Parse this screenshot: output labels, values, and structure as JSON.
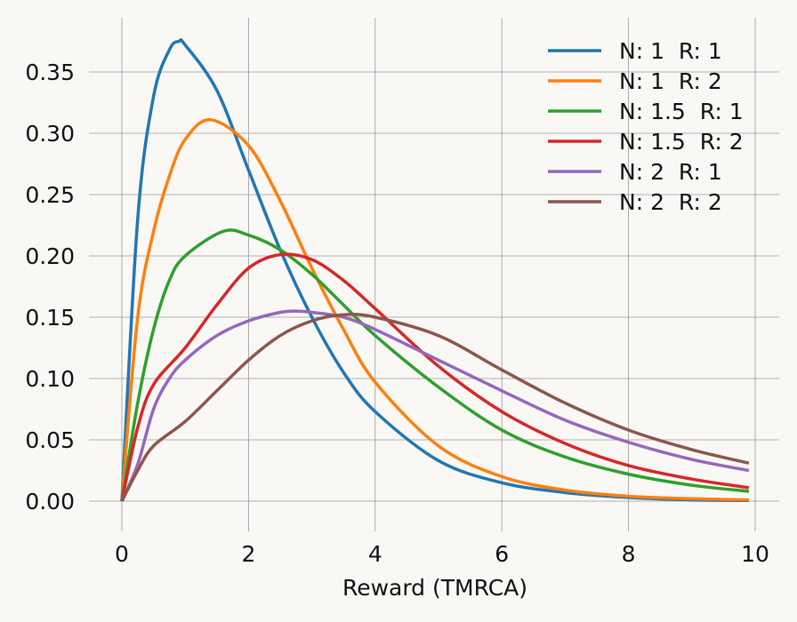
{
  "chart_data": {
    "type": "line",
    "title": "",
    "xlabel": "Reward (TMRCA)",
    "ylabel": "",
    "xlim": [
      -0.45,
      10.3
    ],
    "ylim": [
      -0.012,
      0.395
    ],
    "grid": true,
    "legend_position": "top-right",
    "x_ticks": [
      0,
      2,
      4,
      6,
      8,
      10
    ],
    "x_tick_labels": [
      "0",
      "2",
      "4",
      "6",
      "8",
      "10"
    ],
    "y_ticks": [
      0,
      0.05,
      0.1,
      0.15,
      0.2,
      0.25,
      0.3,
      0.35
    ],
    "y_tick_labels": [
      "0.00",
      "0.05",
      "0.10",
      "0.15",
      "0.20",
      "0.25",
      "0.30",
      "0.35"
    ],
    "series": [
      {
        "name": "N: 1  R: 1",
        "color": "#1f77b4",
        "x": [
          0,
          0.25,
          0.5,
          0.75,
          0.9,
          1.0,
          1.5,
          2,
          2.5,
          3,
          3.5,
          4,
          5,
          6,
          7,
          8,
          9,
          9.9
        ],
        "y": [
          0,
          0.23,
          0.33,
          0.368,
          0.375,
          0.372,
          0.335,
          0.27,
          0.205,
          0.15,
          0.105,
          0.073,
          0.033,
          0.015,
          0.007,
          0.003,
          0.001,
          0.0005
        ]
      },
      {
        "name": "N: 1  R: 2",
        "color": "#ff7f0e",
        "x": [
          0,
          0.25,
          0.5,
          0.75,
          1,
          1.4,
          2,
          2.5,
          3,
          3.5,
          4,
          5,
          6,
          7,
          8,
          9,
          9.9
        ],
        "y": [
          0,
          0.15,
          0.22,
          0.265,
          0.295,
          0.311,
          0.29,
          0.245,
          0.19,
          0.14,
          0.097,
          0.045,
          0.02,
          0.009,
          0.004,
          0.002,
          0.001
        ]
      },
      {
        "name": "N: 1.5  R: 1",
        "color": "#2ca02c",
        "x": [
          0,
          0.25,
          0.5,
          0.75,
          1,
          1.6,
          2,
          2.5,
          3,
          3.5,
          4,
          5,
          6,
          7,
          8,
          9,
          9.9
        ],
        "y": [
          0,
          0.08,
          0.14,
          0.18,
          0.2,
          0.22,
          0.217,
          0.205,
          0.185,
          0.16,
          0.135,
          0.093,
          0.058,
          0.036,
          0.022,
          0.013,
          0.008
        ]
      },
      {
        "name": "N: 1.5  R: 2",
        "color": "#d62728",
        "x": [
          0,
          0.25,
          0.5,
          1,
          1.5,
          2,
          2.5,
          3,
          3.5,
          4,
          5,
          6,
          7,
          8,
          9,
          9.9
        ],
        "y": [
          0,
          0.06,
          0.095,
          0.125,
          0.16,
          0.19,
          0.201,
          0.197,
          0.18,
          0.157,
          0.11,
          0.073,
          0.047,
          0.029,
          0.018,
          0.011
        ]
      },
      {
        "name": "N: 2  R: 1",
        "color": "#9467bd",
        "x": [
          0,
          0.25,
          0.5,
          0.75,
          1,
          1.5,
          2,
          2.5,
          2.75,
          3,
          3.5,
          4,
          5,
          6,
          7,
          8,
          9,
          9.9
        ],
        "y": [
          0,
          0.03,
          0.075,
          0.1,
          0.115,
          0.135,
          0.147,
          0.154,
          0.155,
          0.154,
          0.15,
          0.14,
          0.115,
          0.09,
          0.066,
          0.048,
          0.034,
          0.025
        ]
      },
      {
        "name": "N: 2  R: 2",
        "color": "#8c564b",
        "x": [
          0,
          0.25,
          0.5,
          1,
          1.5,
          2,
          2.5,
          3,
          3.5,
          4,
          5,
          6,
          7,
          8,
          9,
          9.9
        ],
        "y": [
          0,
          0.025,
          0.045,
          0.065,
          0.09,
          0.115,
          0.135,
          0.147,
          0.152,
          0.15,
          0.135,
          0.107,
          0.08,
          0.058,
          0.042,
          0.031
        ]
      }
    ]
  }
}
